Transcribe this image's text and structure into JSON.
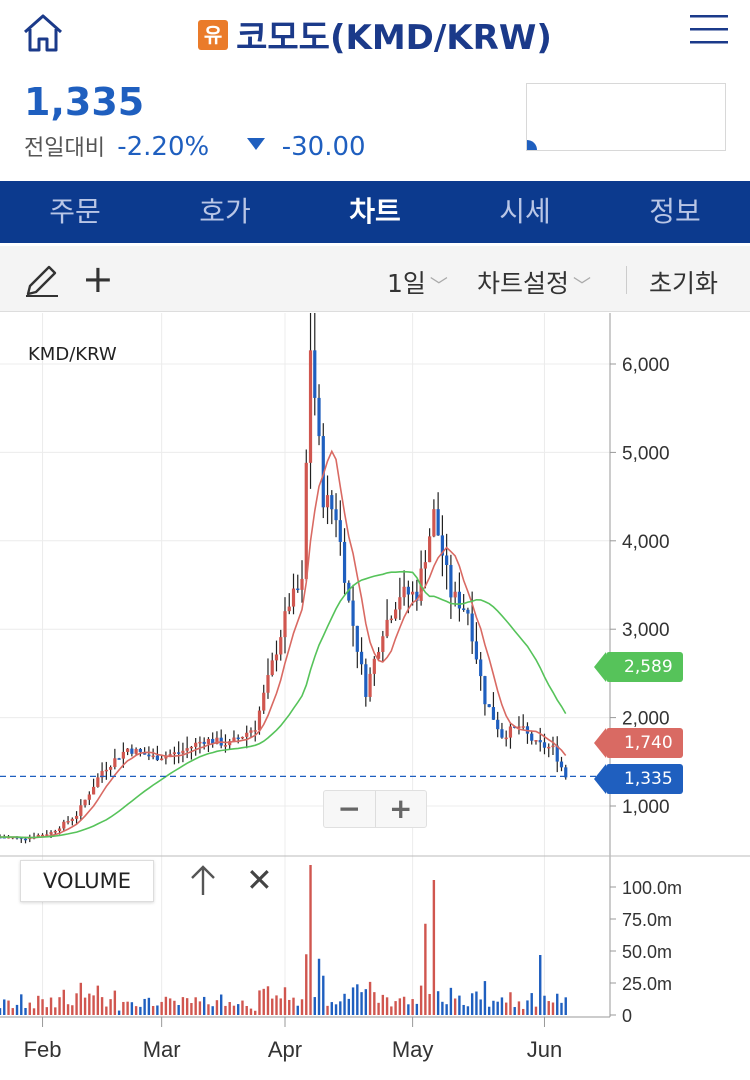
{
  "header": {
    "badge": "유",
    "title": "코모도(KMD/KRW)"
  },
  "price": {
    "current": "1,335",
    "change_label": "전일대비",
    "change_pct": "-2.20%",
    "change_amt": "-30.00"
  },
  "tabs": [
    {
      "label": "주문",
      "active": false
    },
    {
      "label": "호가",
      "active": false
    },
    {
      "label": "차트",
      "active": true
    },
    {
      "label": "시세",
      "active": false
    },
    {
      "label": "정보",
      "active": false
    }
  ],
  "toolbar": {
    "period": "1일",
    "settings": "차트설정",
    "reset": "초기화"
  },
  "colors": {
    "up": "#d0564f",
    "down": "#1f5fbf",
    "ma_short": "#d96a63",
    "ma_long": "#56c35a",
    "nav": "#0c3a8e"
  },
  "chart_data": {
    "type": "candlestick",
    "pair_label": "KMD/KRW",
    "x_ticks": [
      "Feb",
      "Mar",
      "Apr",
      "May",
      "Jun"
    ],
    "y_ticks": [
      "1,000",
      "2,000",
      "3,000",
      "4,000",
      "5,000",
      "6,000"
    ],
    "ylim": [
      500,
      6500
    ],
    "price_series": {
      "x_day": [
        0,
        6,
        12,
        18,
        24,
        30,
        36,
        42,
        48,
        54,
        60,
        64,
        68,
        71,
        73,
        76,
        79,
        82,
        86,
        90,
        94,
        98,
        102,
        106,
        110,
        114,
        118,
        122,
        126,
        130,
        133
      ],
      "close": [
        650,
        640,
        700,
        900,
        1400,
        1650,
        1550,
        1600,
        1750,
        1700,
        1900,
        2600,
        3300,
        3500,
        6200,
        4500,
        4300,
        3300,
        2300,
        3000,
        3400,
        3400,
        4300,
        3400,
        3200,
        2200,
        1800,
        1900,
        1700,
        1650,
        1335
      ]
    },
    "ma_short_last": "1,740",
    "ma_long_last": "2,589",
    "current_price_label": "1,335",
    "volume": {
      "label": "VOLUME",
      "y_ticks": [
        "100.0m",
        "75.0m",
        "50.0m",
        "25.0m",
        "0"
      ],
      "ylim": [
        0,
        100
      ]
    }
  }
}
